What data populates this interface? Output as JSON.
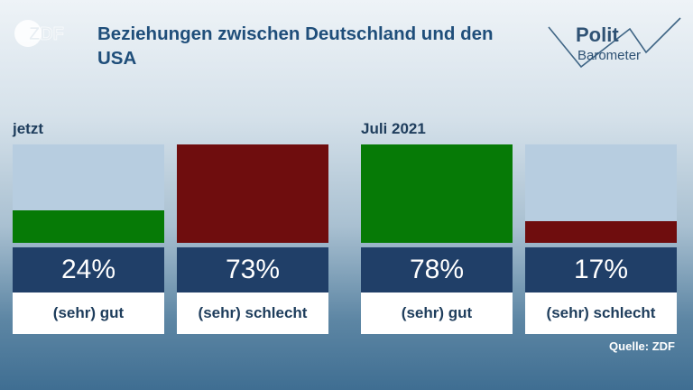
{
  "title": "Beziehungen zwischen Deutschland und den USA",
  "logo_left": "ZDF",
  "logo_right": {
    "line1": "Polit",
    "line2": "Barometer"
  },
  "source": "Quelle: ZDF",
  "colors": {
    "good": "#067a06",
    "bad": "#6f0d0e",
    "track": "#b7cde0",
    "pct_bg": "#203f68",
    "title": "#1f4e7a"
  },
  "chart_data": [
    {
      "type": "bar",
      "title": "jetzt",
      "categories": [
        "(sehr) gut",
        "(sehr) schlecht"
      ],
      "values": [
        24,
        73
      ],
      "value_labels": [
        "24%",
        "73%"
      ],
      "ylim": [
        0,
        73
      ]
    },
    {
      "type": "bar",
      "title": "Juli 2021",
      "categories": [
        "(sehr) gut",
        "(sehr) schlecht"
      ],
      "values": [
        78,
        17
      ],
      "value_labels": [
        "78%",
        "17%"
      ],
      "ylim": [
        0,
        78
      ]
    }
  ]
}
